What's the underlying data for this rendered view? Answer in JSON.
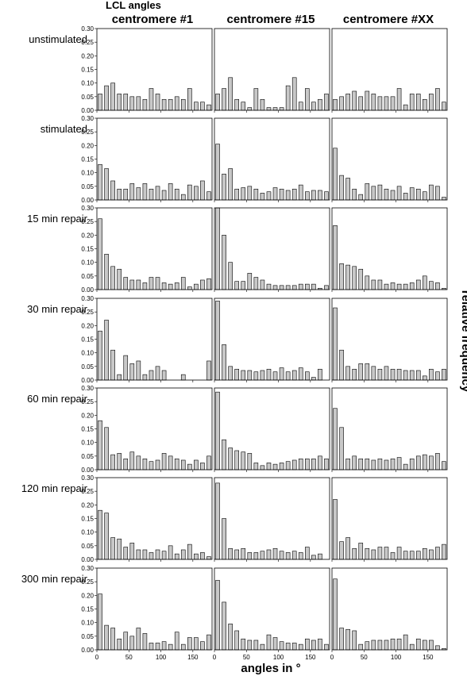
{
  "figure": {
    "super_title": "LCL angles",
    "column_titles": [
      "centromere #1",
      "centromere #15",
      "centromere #XX"
    ],
    "row_labels": [
      "unstimulated",
      "stimulated",
      "15 min repair",
      "30 min repair",
      "60 min repair",
      "120 min repair",
      "300 min repair"
    ],
    "xlabel": "angles in °",
    "ylabel": "relative frequency"
  },
  "chart_data": {
    "type": "bar",
    "layout": "grid 7 rows x 3 columns of histograms",
    "xlim": [
      0,
      180
    ],
    "ylim": [
      0,
      0.3
    ],
    "x_ticks": [
      0,
      50,
      100,
      150
    ],
    "y_ticks": [
      0.0,
      0.05,
      0.1,
      0.15,
      0.2,
      0.25,
      0.3
    ],
    "y_tick_labels": [
      "0.00",
      "0.05",
      "0.10",
      "0.15",
      "0.20",
      "0.25",
      "0.30"
    ],
    "bin_centers": [
      5,
      15,
      25,
      35,
      45,
      55,
      65,
      75,
      85,
      95,
      105,
      115,
      125,
      135,
      145,
      155,
      165,
      175
    ],
    "bar_color": "#c8c8c8",
    "panels": [
      {
        "row": "unstimulated",
        "column": "centromere #1",
        "values": [
          0.06,
          0.09,
          0.1,
          0.06,
          0.06,
          0.05,
          0.05,
          0.04,
          0.08,
          0.06,
          0.04,
          0.04,
          0.05,
          0.04,
          0.08,
          0.03,
          0.03,
          0.02
        ]
      },
      {
        "row": "unstimulated",
        "column": "centromere #15",
        "values": [
          0.06,
          0.08,
          0.12,
          0.04,
          0.03,
          0.01,
          0.08,
          0.04,
          0.01,
          0.01,
          0.01,
          0.09,
          0.12,
          0.03,
          0.08,
          0.03,
          0.04,
          0.06
        ]
      },
      {
        "row": "unstimulated",
        "column": "centromere #XX",
        "values": [
          0.04,
          0.05,
          0.06,
          0.07,
          0.05,
          0.07,
          0.06,
          0.05,
          0.05,
          0.05,
          0.08,
          0.02,
          0.06,
          0.06,
          0.04,
          0.06,
          0.08,
          0.03
        ]
      },
      {
        "row": "stimulated",
        "column": "centromere #1",
        "values": [
          0.13,
          0.115,
          0.07,
          0.04,
          0.04,
          0.06,
          0.045,
          0.06,
          0.04,
          0.05,
          0.035,
          0.06,
          0.04,
          0.02,
          0.055,
          0.05,
          0.07,
          0.03
        ]
      },
      {
        "row": "stimulated",
        "column": "centromere #15",
        "values": [
          0.205,
          0.095,
          0.115,
          0.04,
          0.045,
          0.05,
          0.04,
          0.025,
          0.03,
          0.045,
          0.04,
          0.035,
          0.04,
          0.055,
          0.03,
          0.035,
          0.035,
          0.03
        ]
      },
      {
        "row": "stimulated",
        "column": "centromere #XX",
        "values": [
          0.19,
          0.09,
          0.08,
          0.04,
          0.02,
          0.06,
          0.05,
          0.055,
          0.04,
          0.035,
          0.05,
          0.025,
          0.045,
          0.04,
          0.03,
          0.055,
          0.05,
          0.01
        ]
      },
      {
        "row": "15 min repair",
        "column": "centromere #1",
        "values": [
          0.26,
          0.13,
          0.085,
          0.075,
          0.045,
          0.035,
          0.035,
          0.025,
          0.045,
          0.045,
          0.025,
          0.02,
          0.025,
          0.045,
          0.01,
          0.02,
          0.035,
          0.04
        ]
      },
      {
        "row": "15 min repair",
        "column": "centromere #15",
        "values": [
          0.3,
          0.2,
          0.1,
          0.03,
          0.03,
          0.06,
          0.045,
          0.035,
          0.02,
          0.015,
          0.015,
          0.015,
          0.015,
          0.02,
          0.02,
          0.02,
          0.005,
          0.015
        ]
      },
      {
        "row": "15 min repair",
        "column": "centromere #XX",
        "values": [
          0.235,
          0.095,
          0.09,
          0.085,
          0.075,
          0.05,
          0.035,
          0.035,
          0.02,
          0.025,
          0.02,
          0.02,
          0.025,
          0.035,
          0.05,
          0.03,
          0.025,
          0.005
        ]
      },
      {
        "row": "30 min repair",
        "column": "centromere #1",
        "values": [
          0.18,
          0.22,
          0.11,
          0.02,
          0.09,
          0.06,
          0.07,
          0.02,
          0.035,
          0.05,
          0.035,
          0.0,
          0.0,
          0.02,
          0.0,
          0.0,
          0.0,
          0.07
        ]
      },
      {
        "row": "30 min repair",
        "column": "centromere #15",
        "values": [
          0.29,
          0.13,
          0.05,
          0.04,
          0.035,
          0.035,
          0.03,
          0.035,
          0.04,
          0.03,
          0.045,
          0.03,
          0.035,
          0.045,
          0.03,
          0.01,
          0.04,
          0.0
        ]
      },
      {
        "row": "30 min repair",
        "column": "centromere #XX",
        "values": [
          0.265,
          0.11,
          0.05,
          0.04,
          0.06,
          0.06,
          0.05,
          0.04,
          0.05,
          0.04,
          0.04,
          0.035,
          0.035,
          0.035,
          0.015,
          0.04,
          0.03,
          0.04
        ]
      },
      {
        "row": "60 min repair",
        "column": "centromere #1",
        "values": [
          0.18,
          0.155,
          0.055,
          0.06,
          0.04,
          0.065,
          0.05,
          0.04,
          0.03,
          0.035,
          0.06,
          0.05,
          0.04,
          0.035,
          0.02,
          0.035,
          0.025,
          0.05
        ]
      },
      {
        "row": "60 min repair",
        "column": "centromere #15",
        "values": [
          0.285,
          0.11,
          0.08,
          0.07,
          0.065,
          0.06,
          0.025,
          0.015,
          0.025,
          0.02,
          0.025,
          0.03,
          0.035,
          0.04,
          0.04,
          0.04,
          0.05,
          0.04
        ]
      },
      {
        "row": "60 min repair",
        "column": "centromere #XX",
        "values": [
          0.225,
          0.155,
          0.04,
          0.05,
          0.04,
          0.04,
          0.035,
          0.04,
          0.035,
          0.04,
          0.045,
          0.02,
          0.04,
          0.05,
          0.055,
          0.05,
          0.06,
          0.03
        ]
      },
      {
        "row": "120 min repair",
        "column": "centromere #1",
        "values": [
          0.18,
          0.17,
          0.08,
          0.075,
          0.045,
          0.06,
          0.035,
          0.035,
          0.025,
          0.035,
          0.03,
          0.05,
          0.02,
          0.035,
          0.055,
          0.02,
          0.025,
          0.01
        ]
      },
      {
        "row": "120 min repair",
        "column": "centromere #15",
        "values": [
          0.28,
          0.15,
          0.04,
          0.035,
          0.04,
          0.025,
          0.025,
          0.03,
          0.035,
          0.04,
          0.03,
          0.025,
          0.03,
          0.025,
          0.045,
          0.015,
          0.02,
          0.0
        ]
      },
      {
        "row": "120 min repair",
        "column": "centromere #XX",
        "values": [
          0.22,
          0.065,
          0.08,
          0.04,
          0.06,
          0.04,
          0.035,
          0.045,
          0.045,
          0.025,
          0.045,
          0.03,
          0.03,
          0.03,
          0.04,
          0.035,
          0.045,
          0.055
        ]
      },
      {
        "row": "300 min repair",
        "column": "centromere #1",
        "values": [
          0.205,
          0.09,
          0.08,
          0.04,
          0.065,
          0.05,
          0.08,
          0.06,
          0.025,
          0.025,
          0.03,
          0.02,
          0.065,
          0.02,
          0.045,
          0.045,
          0.03,
          0.055
        ]
      },
      {
        "row": "300 min repair",
        "column": "centromere #15",
        "values": [
          0.255,
          0.175,
          0.095,
          0.07,
          0.04,
          0.035,
          0.035,
          0.02,
          0.055,
          0.045,
          0.03,
          0.025,
          0.025,
          0.02,
          0.04,
          0.035,
          0.04,
          0.02
        ]
      },
      {
        "row": "300 min repair",
        "column": "centromere #XX",
        "values": [
          0.26,
          0.08,
          0.075,
          0.07,
          0.02,
          0.03,
          0.035,
          0.035,
          0.035,
          0.04,
          0.04,
          0.055,
          0.02,
          0.04,
          0.035,
          0.035,
          0.015,
          0.005
        ]
      }
    ]
  }
}
